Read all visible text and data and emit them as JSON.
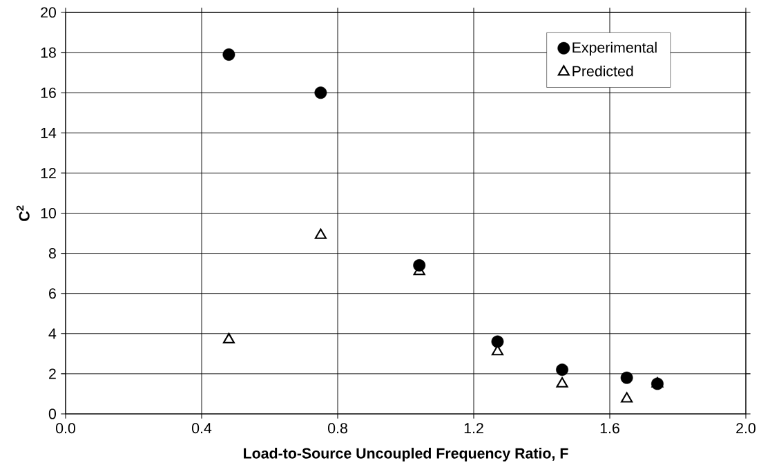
{
  "chart_data": {
    "type": "scatter",
    "xlabel": "Load-to-Source Uncoupled Frequency Ratio, F",
    "ylabel": "C$^{2}$",
    "xlim": [
      0,
      2
    ],
    "ylim": [
      0,
      20
    ],
    "xticks": [
      {
        "value": 0,
        "label": "0.0"
      },
      {
        "value": 0.4,
        "label": "0.4"
      },
      {
        "value": 0.8,
        "label": "0.8"
      },
      {
        "value": 1.2,
        "label": "1.2"
      },
      {
        "value": 1.6,
        "label": "1.6"
      },
      {
        "value": 2,
        "label": "2.0"
      }
    ],
    "yticks": [
      0,
      2,
      4,
      6,
      8,
      10,
      12,
      14,
      16,
      18,
      20
    ],
    "grid": true,
    "legend": "top right",
    "x": [
      0.48,
      0.75,
      1.04,
      1.27,
      1.46,
      1.65,
      1.74
    ],
    "series": [
      {
        "name": "Experimental",
        "color": "#000000",
        "marker": "circle",
        "values": [
          17.9,
          16.0,
          7.4,
          3.6,
          2.2,
          1.8,
          1.5
        ]
      },
      {
        "name": "Predicted",
        "color": "#000000",
        "marker": "triangle",
        "values": [
          3.7,
          8.9,
          7.1,
          3.1,
          1.5,
          0.75,
          1.5
        ]
      }
    ]
  }
}
